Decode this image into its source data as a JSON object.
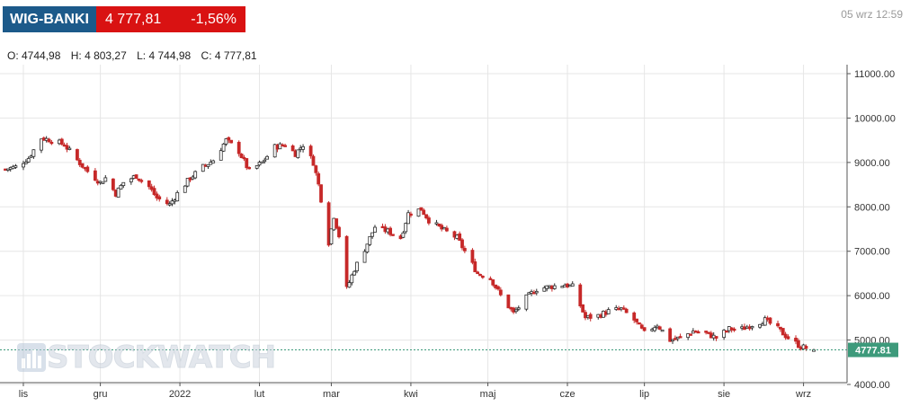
{
  "ticker": {
    "symbol": "WIG-BANKI",
    "value": "4 777,81",
    "change": "-1,56%"
  },
  "timestamp": "05 wrz 12:59",
  "ohlc": {
    "open": "O: 4744,98",
    "high": "H: 4 803,27",
    "low": "L: 4 744,98",
    "close": "C: 4 777,81"
  },
  "watermark": "STOCKWATCH",
  "colors": {
    "up": "#2b2b2b",
    "down": "#c62828",
    "last_price": "#3d9a7b",
    "grid": "#e6e6e6"
  },
  "chart_data": {
    "type": "candlestick",
    "ylim": [
      4000,
      11000
    ],
    "y_ticks": [
      "4000.00",
      "5000.00",
      "6000.00",
      "7000.00",
      "8000.00",
      "9000.00",
      "10000.00",
      "11000.00"
    ],
    "x_ticks": [
      "lis",
      "gru",
      "2022",
      "lut",
      "mar",
      "kwi",
      "maj",
      "cze",
      "lip",
      "sie",
      "wrz"
    ],
    "last_price": 4777.81,
    "last_price_label": "4777.81",
    "close_path": [
      [
        "2021-10-25",
        8850
      ],
      [
        "2021-10-29",
        8900
      ],
      [
        "2021-11-03",
        9100
      ],
      [
        "2021-11-08",
        9550
      ],
      [
        "2021-11-12",
        9500
      ],
      [
        "2021-11-17",
        9400
      ],
      [
        "2021-11-22",
        9050
      ],
      [
        "2021-11-26",
        8800
      ],
      [
        "2021-12-01",
        8550
      ],
      [
        "2021-12-03",
        8650
      ],
      [
        "2021-12-07",
        8300
      ],
      [
        "2021-12-10",
        8550
      ],
      [
        "2021-12-15",
        8700
      ],
      [
        "2021-12-20",
        8450
      ],
      [
        "2021-12-23",
        8200
      ],
      [
        "2021-12-28",
        8050
      ],
      [
        "2021-12-31",
        8300
      ],
      [
        "2022-01-05",
        8650
      ],
      [
        "2022-01-10",
        8900
      ],
      [
        "2022-01-14",
        9050
      ],
      [
        "2022-01-19",
        9500
      ],
      [
        "2022-01-24",
        9250
      ],
      [
        "2022-01-28",
        8800
      ],
      [
        "2022-02-02",
        9000
      ],
      [
        "2022-02-07",
        9350
      ],
      [
        "2022-02-11",
        9400
      ],
      [
        "2022-02-15",
        9200
      ],
      [
        "2022-02-18",
        9400
      ],
      [
        "2022-02-22",
        9000
      ],
      [
        "2022-02-24",
        8500
      ],
      [
        "2022-02-28",
        7200
      ],
      [
        "2022-03-02",
        7800
      ],
      [
        "2022-03-04",
        7350
      ],
      [
        "2022-03-07",
        6150
      ],
      [
        "2022-03-10",
        6600
      ],
      [
        "2022-03-14",
        7050
      ],
      [
        "2022-03-18",
        7550
      ],
      [
        "2022-03-23",
        7450
      ],
      [
        "2022-03-28",
        7300
      ],
      [
        "2022-03-31",
        7850
      ],
      [
        "2022-04-05",
        7950
      ],
      [
        "2022-04-08",
        7700
      ],
      [
        "2022-04-13",
        7500
      ],
      [
        "2022-04-19",
        7300
      ],
      [
        "2022-04-22",
        7000
      ],
      [
        "2022-04-27",
        6500
      ],
      [
        "2022-05-02",
        6400
      ],
      [
        "2022-05-06",
        6000
      ],
      [
        "2022-05-11",
        5600
      ],
      [
        "2022-05-16",
        5950
      ],
      [
        "2022-05-20",
        6150
      ],
      [
        "2022-05-25",
        6200
      ],
      [
        "2022-05-31",
        6250
      ],
      [
        "2022-06-03",
        6200
      ],
      [
        "2022-06-08",
        5500
      ],
      [
        "2022-06-13",
        5550
      ],
      [
        "2022-06-17",
        5650
      ],
      [
        "2022-06-22",
        5700
      ],
      [
        "2022-06-27",
        5450
      ],
      [
        "2022-07-01",
        5150
      ],
      [
        "2022-07-06",
        5350
      ],
      [
        "2022-07-11",
        5000
      ],
      [
        "2022-07-15",
        5050
      ],
      [
        "2022-07-20",
        5200
      ],
      [
        "2022-07-25",
        5150
      ],
      [
        "2022-07-29",
        5050
      ],
      [
        "2022-08-03",
        5250
      ],
      [
        "2022-08-08",
        5250
      ],
      [
        "2022-08-12",
        5350
      ],
      [
        "2022-08-17",
        5450
      ],
      [
        "2022-08-22",
        5250
      ],
      [
        "2022-08-26",
        5050
      ],
      [
        "2022-08-31",
        4850
      ],
      [
        "2022-09-05",
        4777.81
      ]
    ]
  }
}
